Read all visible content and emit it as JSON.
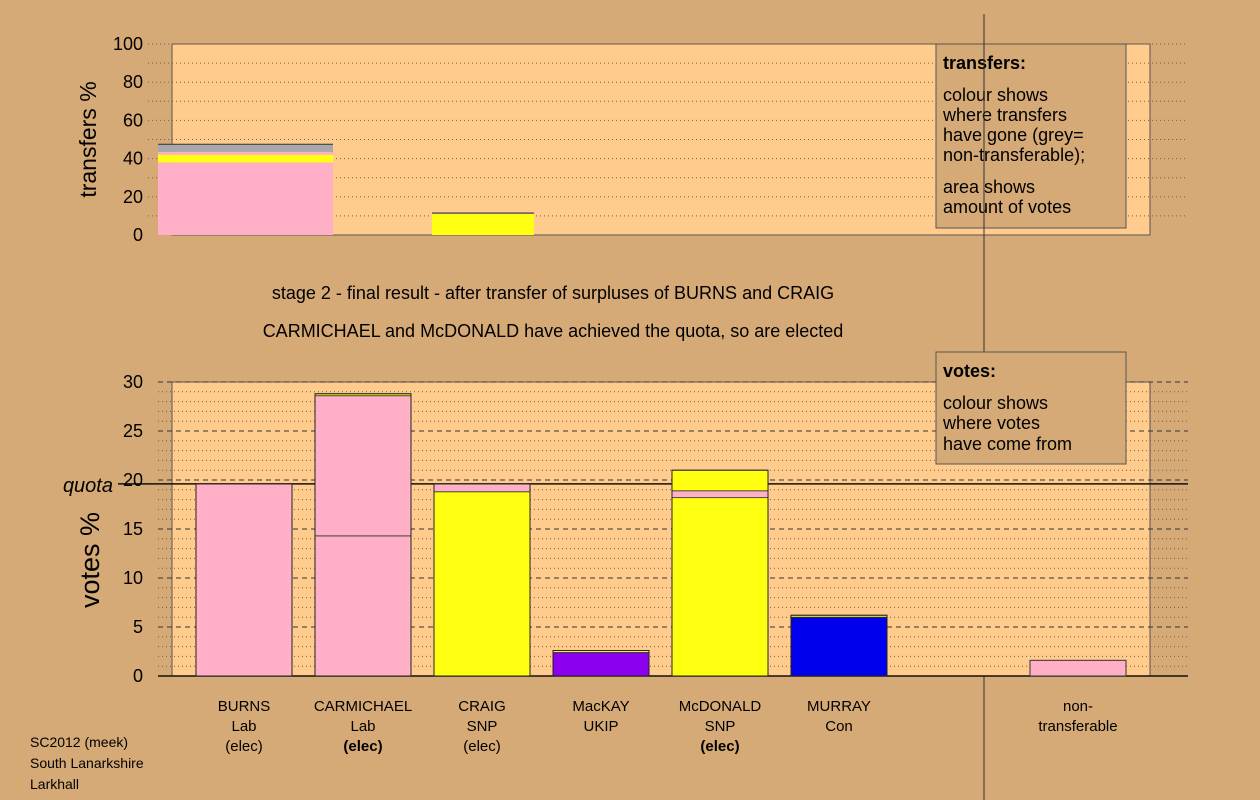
{
  "colors": {
    "background": "#D6AA77",
    "plot_bg": "#FFCC8E",
    "Lab": "#FFB0C6",
    "SNP": "#FFFF12",
    "UKIP": "#8C00F0",
    "Con": "#0000EE",
    "non_transferable": "#A8A8A8"
  },
  "chart_data": [
    {
      "type": "bar",
      "stacked": true,
      "ylabel": "transfers %",
      "ylim": [
        0,
        100
      ],
      "yticks": [
        0,
        20,
        40,
        60,
        80,
        100
      ],
      "grid": true,
      "categories": [
        "BURNS",
        "CRAIG"
      ],
      "series": [
        {
          "party": "Lab",
          "values": [
            38,
            0
          ]
        },
        {
          "party": "SNP",
          "values": [
            4,
            11
          ]
        },
        {
          "party": "Lab",
          "values": [
            1.5,
            0
          ]
        },
        {
          "party": "non-transferable",
          "values": [
            4,
            0.5
          ]
        }
      ],
      "legend": {
        "title": "transfers:",
        "lines": [
          "colour shows",
          "where transfers",
          "have gone (grey=",
          "non-transferable);",
          "area shows",
          "amount of votes"
        ]
      }
    },
    {
      "type": "bar",
      "stacked": true,
      "ylabel": "votes %",
      "ylim": [
        0,
        30
      ],
      "yticks": [
        0,
        5,
        10,
        15,
        20,
        25,
        30
      ],
      "quota": 19.6,
      "quota_label": "quota",
      "grid": true,
      "categories": [
        {
          "name": "BURNS",
          "party": "Lab",
          "status": "(elec)",
          "status_bold": false
        },
        {
          "name": "CARMICHAEL",
          "party": "Lab",
          "status": "(elec)",
          "status_bold": true
        },
        {
          "name": "CRAIG",
          "party": "SNP",
          "status": "(elec)",
          "status_bold": false
        },
        {
          "name": "MacKAY",
          "party": "UKIP",
          "status": "",
          "status_bold": false
        },
        {
          "name": "McDONALD",
          "party": "SNP",
          "status": "(elec)",
          "status_bold": true
        },
        {
          "name": "MURRAY",
          "party": "Con",
          "status": "",
          "status_bold": false
        }
      ],
      "segments": [
        [
          {
            "party": "Lab",
            "value": 19.6
          }
        ],
        [
          {
            "party": "Lab",
            "value": 14.3
          },
          {
            "party": "Lab",
            "value": 14.3
          },
          {
            "party": "SNP",
            "value": 0.2
          }
        ],
        [
          {
            "party": "SNP",
            "value": 18.8
          },
          {
            "party": "Lab",
            "value": 0.8
          }
        ],
        [
          {
            "party": "UKIP",
            "value": 2.4
          },
          {
            "party": "SNP",
            "value": 0.2
          }
        ],
        [
          {
            "party": "SNP",
            "value": 18.2
          },
          {
            "party": "Lab",
            "value": 0.7
          },
          {
            "party": "SNP",
            "value": 2.1
          }
        ],
        [
          {
            "party": "Con",
            "value": 6.0
          },
          {
            "party": "SNP",
            "value": 0.2
          }
        ]
      ],
      "non_transferable": {
        "label": [
          "non-",
          "transferable"
        ],
        "value": 1.6
      },
      "legend": {
        "title": "votes:",
        "lines": [
          "colour shows",
          "where votes",
          "have come from"
        ]
      }
    }
  ],
  "captions": {
    "line1": "stage 2 - final result - after transfer of surpluses of BURNS and CRAIG",
    "line2": "CARMICHAEL and McDONALD have achieved the quota, so are elected"
  },
  "footer": [
    "SC2012 (meek)",
    "South Lanarkshire",
    "Larkhall"
  ]
}
